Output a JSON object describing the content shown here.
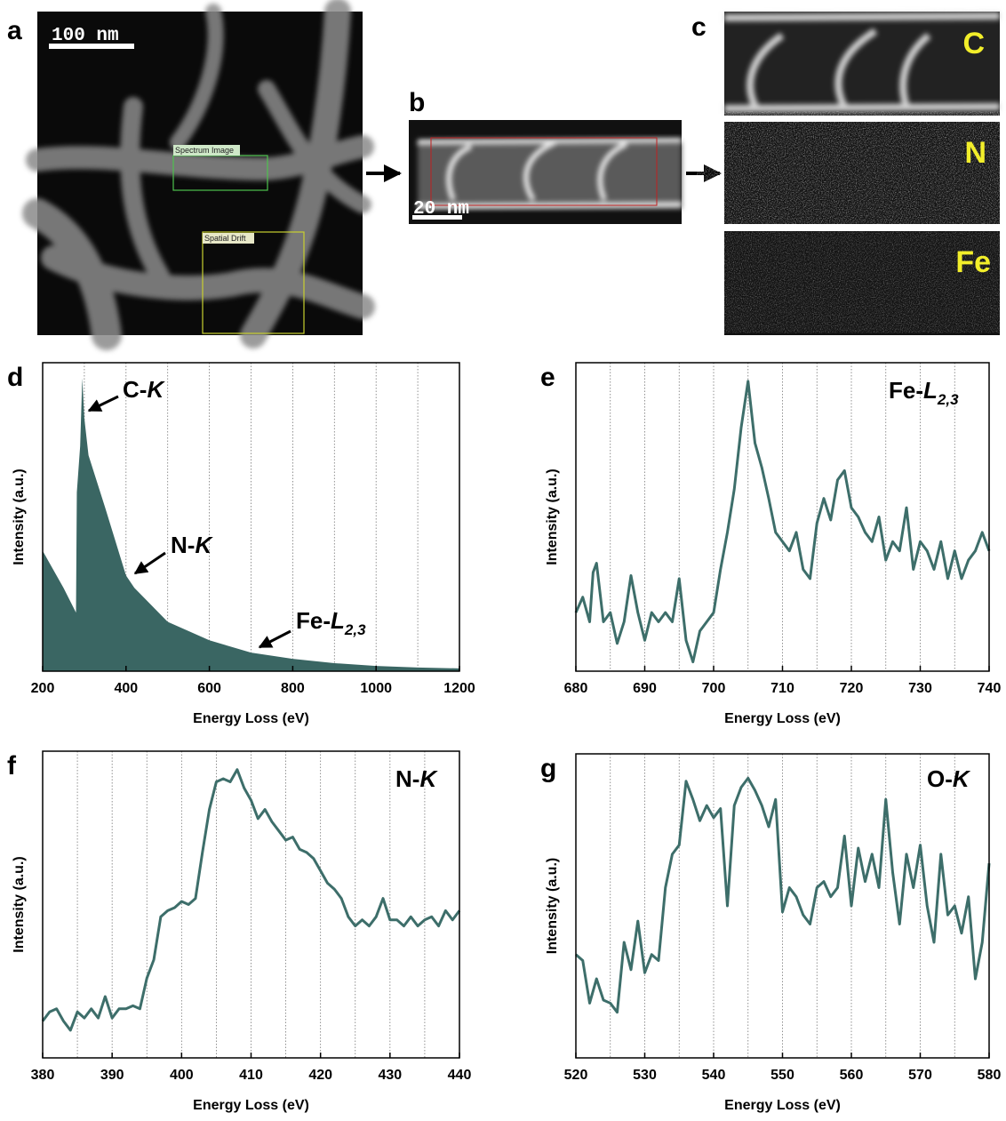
{
  "images": {
    "a": {
      "panel": "a",
      "scale_bar": "100 nm",
      "boxes": [
        "Spectrum Image",
        "Spatial Drift"
      ]
    },
    "b": {
      "panel": "b",
      "scale_bar": "20 nm"
    },
    "c": {
      "panel": "c",
      "maps": [
        "C",
        "N",
        "Fe"
      ]
    }
  },
  "chart_data": [
    {
      "type": "area",
      "panel": "d",
      "xlabel": "Energy Loss (eV)",
      "ylabel": "Intensity (a.u.)",
      "color": "#3a6663",
      "x": [
        200,
        250,
        280,
        282,
        290,
        295,
        300,
        310,
        350,
        400,
        420,
        500,
        600,
        700,
        800,
        900,
        1000,
        1100,
        1200
      ],
      "values": [
        39,
        27,
        19,
        58,
        73,
        95,
        82,
        70,
        53,
        31,
        27,
        16,
        10,
        6,
        4,
        2.6,
        1.7,
        1.2,
        0.9
      ],
      "xlim": [
        200,
        1200
      ],
      "ylim": [
        0,
        100
      ],
      "xticks": [
        200,
        400,
        600,
        800,
        1000,
        1200
      ],
      "xgrid": [
        300,
        400,
        500,
        600,
        700,
        800,
        900,
        1000,
        1100
      ],
      "annotations": [
        [
          "C-",
          "K"
        ],
        [
          "N-",
          "K"
        ],
        [
          "Fe-",
          "L",
          "2,3"
        ]
      ]
    },
    {
      "type": "line",
      "panel": "e",
      "xlabel": "Energy Loss (eV)",
      "ylabel": "Intensity (a.u.)",
      "color": "#3d6e6a",
      "x": [
        680,
        681,
        682,
        682.5,
        683,
        684,
        685,
        686,
        687,
        688,
        689,
        690,
        691,
        692,
        693,
        694,
        695,
        696,
        697,
        698,
        699,
        700,
        701,
        702,
        703,
        704,
        705,
        706,
        707,
        708,
        709,
        710,
        711,
        712,
        713,
        714,
        715,
        716,
        717,
        718,
        719,
        720,
        721,
        722,
        723,
        724,
        725,
        726,
        727,
        728,
        729,
        730,
        731,
        732,
        733,
        734,
        735,
        736,
        737,
        738,
        739,
        740
      ],
      "values": [
        19,
        24,
        16,
        32,
        35,
        16,
        19,
        9,
        16,
        31,
        19,
        10,
        19,
        16,
        19,
        16,
        30,
        10,
        3,
        13,
        16,
        19,
        33,
        45,
        59,
        79,
        94,
        74,
        66,
        56,
        45,
        42,
        39,
        45,
        33,
        30,
        48,
        56,
        49,
        62,
        65,
        53,
        50,
        45,
        42,
        50,
        36,
        42,
        39,
        53,
        33,
        42,
        39,
        33,
        42,
        30,
        39,
        30,
        36,
        39,
        45,
        39
      ],
      "xlim": [
        680,
        740
      ],
      "ylim": [
        0,
        100
      ],
      "xticks": [
        680,
        690,
        700,
        710,
        720,
        730,
        740
      ],
      "xgrid": [
        685,
        690,
        695,
        700,
        705,
        710,
        715,
        720,
        725,
        730,
        735
      ],
      "annotations": [
        [
          "Fe-",
          "L",
          "2,3"
        ]
      ]
    },
    {
      "type": "line",
      "panel": "f",
      "xlabel": "Energy Loss (eV)",
      "ylabel": "Intensity (a.u.)",
      "color": "#3d6e6a",
      "x": [
        380,
        381,
        382,
        383,
        384,
        385,
        386,
        387,
        388,
        389,
        390,
        391,
        392,
        393,
        394,
        395,
        396,
        397,
        398,
        399,
        400,
        401,
        402,
        403,
        404,
        405,
        406,
        407,
        408,
        409,
        410,
        411,
        412,
        413,
        414,
        415,
        416,
        417,
        418,
        419,
        420,
        421,
        422,
        423,
        424,
        425,
        426,
        427,
        428,
        429,
        430,
        431,
        432,
        433,
        434,
        435,
        436,
        437,
        438,
        439,
        440
      ],
      "values": [
        12,
        15,
        16,
        12,
        9,
        15,
        13,
        16,
        13,
        20,
        13,
        16,
        16,
        17,
        16,
        26,
        32,
        46,
        48,
        49,
        51,
        50,
        52,
        67,
        81,
        90,
        91,
        90,
        94,
        88,
        84,
        78,
        81,
        77,
        74,
        71,
        72,
        68,
        67,
        65,
        61,
        57,
        55,
        52,
        46,
        43,
        45,
        43,
        46,
        52,
        45,
        45,
        43,
        46,
        43,
        45,
        46,
        43,
        48,
        45,
        48
      ],
      "xlim": [
        380,
        440
      ],
      "ylim": [
        0,
        100
      ],
      "xticks": [
        380,
        390,
        400,
        410,
        420,
        430,
        440
      ],
      "xgrid": [
        385,
        390,
        395,
        400,
        405,
        410,
        415,
        420,
        425,
        430,
        435
      ],
      "annotations": [
        [
          "N-",
          "K"
        ]
      ]
    },
    {
      "type": "line",
      "panel": "g",
      "xlabel": "Energy Loss (eV)",
      "ylabel": "Intensity (a.u.)",
      "color": "#3d6e6a",
      "x": [
        520,
        521,
        522,
        523,
        524,
        525,
        526,
        527,
        528,
        529,
        530,
        531,
        532,
        533,
        534,
        535,
        536,
        537,
        538,
        539,
        540,
        541,
        542,
        543,
        544,
        545,
        546,
        547,
        548,
        549,
        550,
        551,
        552,
        553,
        554,
        555,
        556,
        557,
        558,
        559,
        560,
        561,
        562,
        563,
        564,
        565,
        566,
        567,
        568,
        569,
        570,
        571,
        572,
        573,
        574,
        575,
        576,
        577,
        578,
        579,
        580
      ],
      "values": [
        34,
        32,
        18,
        26,
        19,
        18,
        15,
        38,
        29,
        45,
        28,
        34,
        32,
        56,
        67,
        70,
        91,
        85,
        78,
        83,
        79,
        82,
        50,
        83,
        89,
        92,
        88,
        83,
        76,
        85,
        48,
        56,
        53,
        47,
        44,
        56,
        58,
        53,
        56,
        73,
        50,
        69,
        58,
        67,
        56,
        85,
        61,
        44,
        67,
        56,
        70,
        50,
        38,
        67,
        47,
        50,
        41,
        53,
        26,
        38,
        64
      ],
      "xlim": [
        520,
        580
      ],
      "ylim": [
        0,
        100
      ],
      "xticks": [
        520,
        530,
        540,
        550,
        560,
        570,
        580
      ],
      "xgrid": [
        525,
        530,
        535,
        540,
        545,
        550,
        555,
        560,
        565,
        570,
        575
      ],
      "annotations": [
        [
          "O-",
          "K"
        ]
      ]
    }
  ]
}
